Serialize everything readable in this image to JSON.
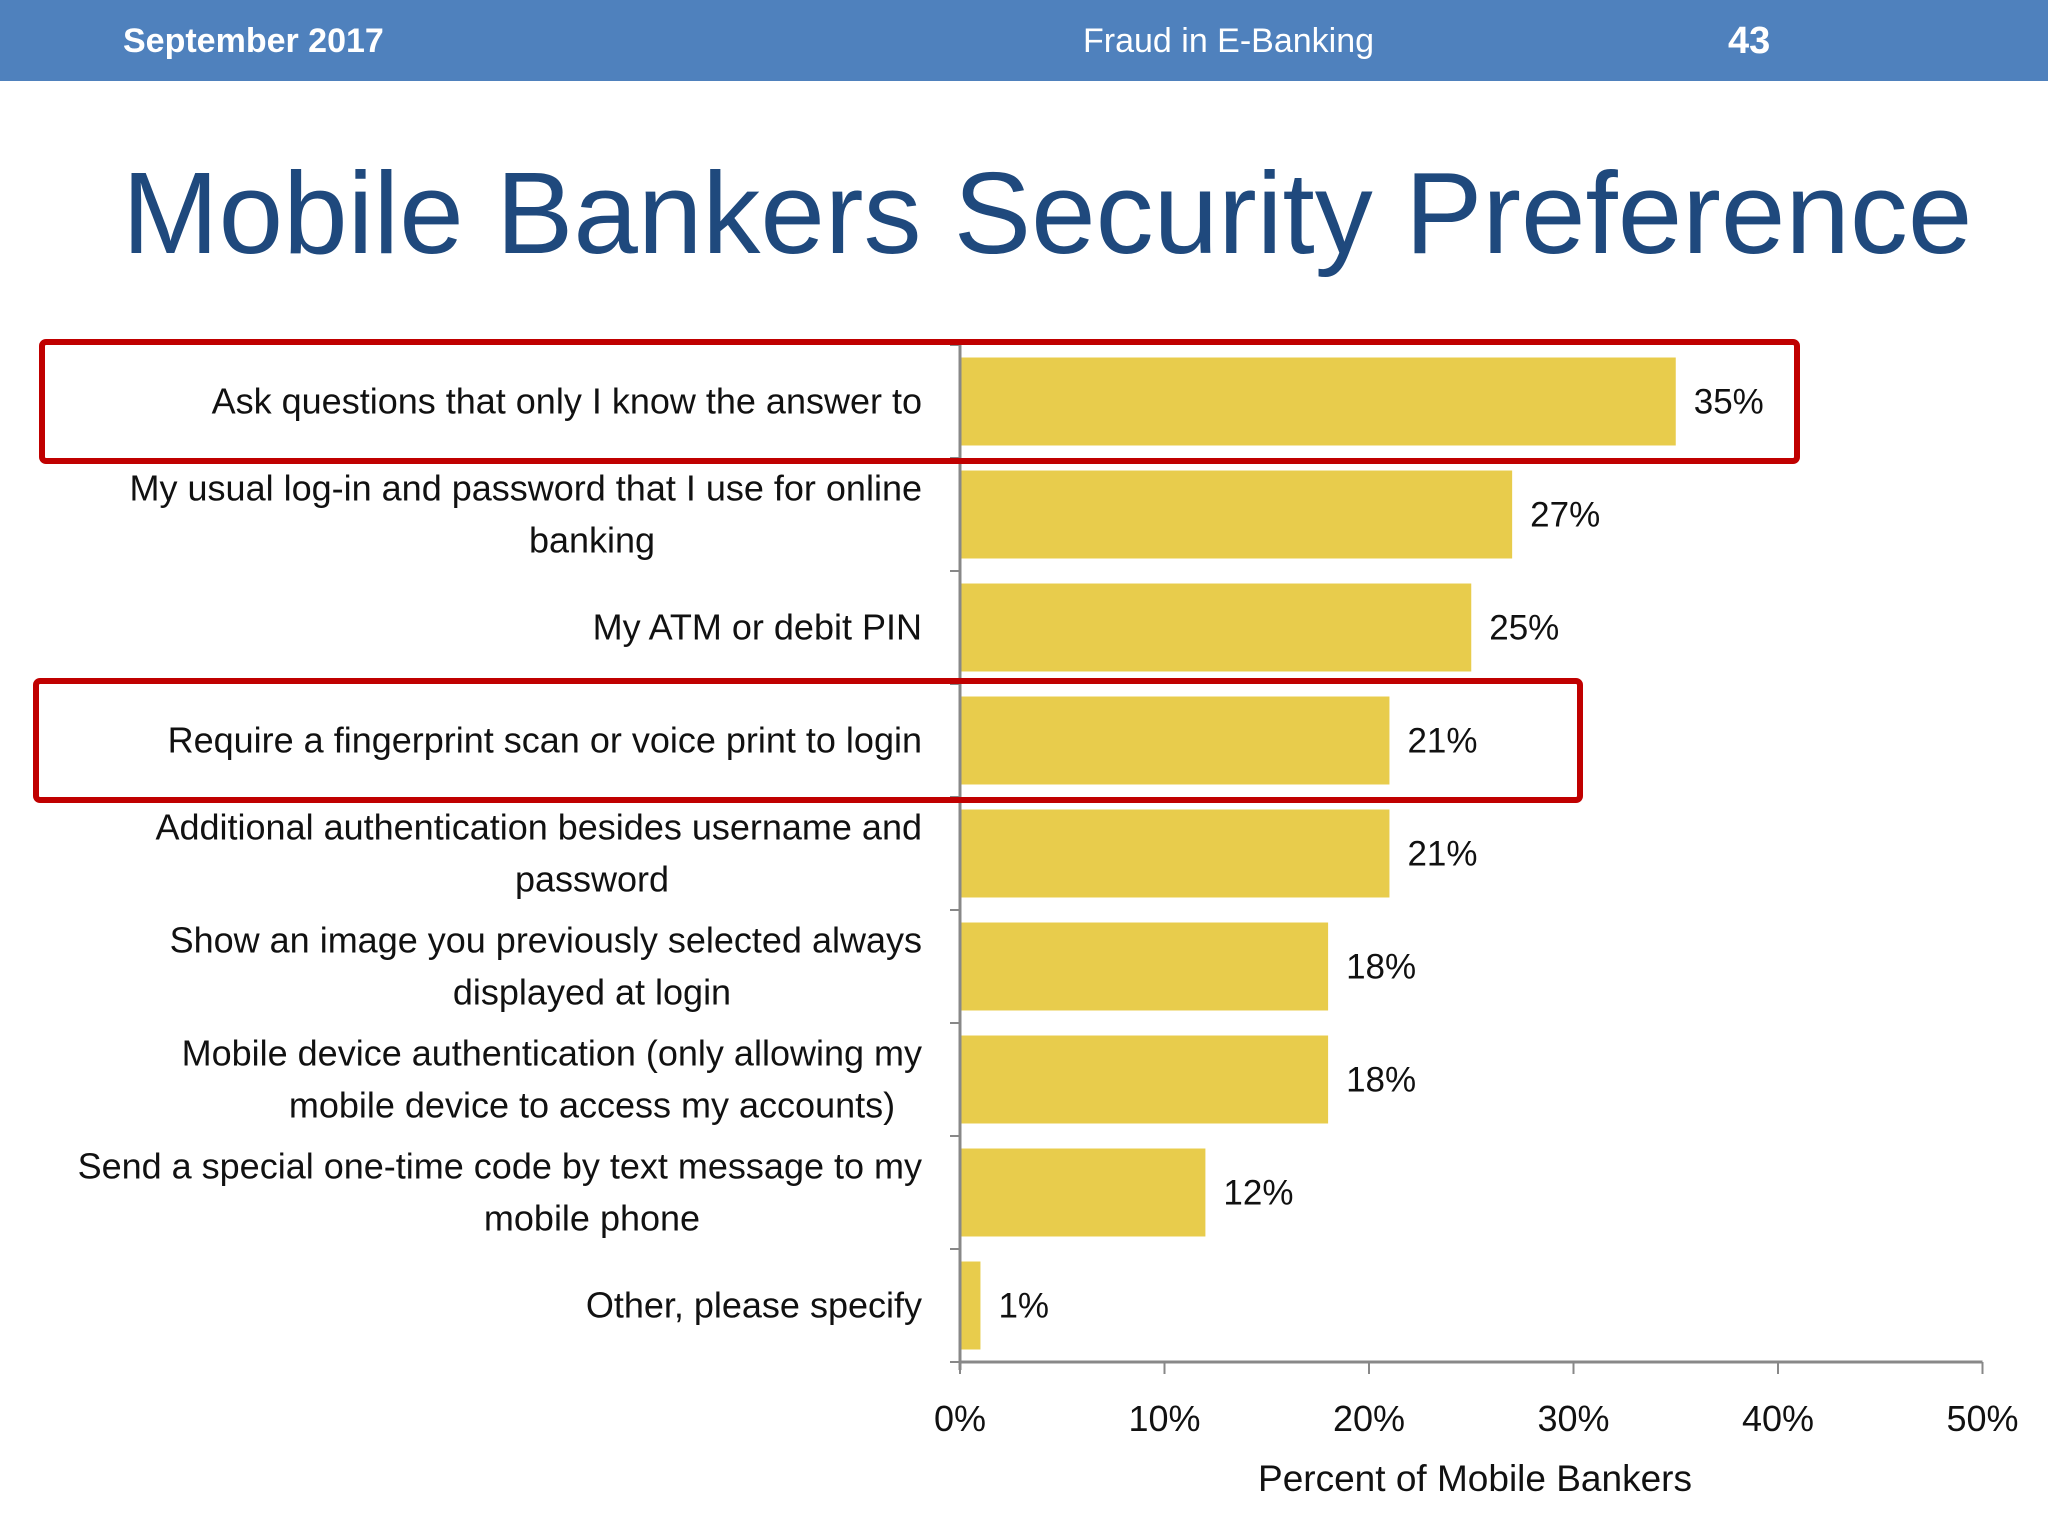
{
  "header": {
    "date": "September 2017",
    "deck_title": "Fraud in E-Banking",
    "page_number": "43"
  },
  "slide": {
    "title": "Mobile Bankers Security Preference"
  },
  "colors": {
    "header_bg": "#4f81bd",
    "title": "#1f497d",
    "bar": "#e8cc4c",
    "highlight_box": "#c00000"
  },
  "chart_data": {
    "type": "bar",
    "orientation": "horizontal",
    "categories": [
      [
        "Ask questions that only I know the answer to"
      ],
      [
        "My usual log-in and password that I use for online",
        "banking"
      ],
      [
        "My ATM or debit PIN"
      ],
      [
        "Require a fingerprint scan or voice print to login"
      ],
      [
        "Additional authentication besides username and",
        "password"
      ],
      [
        "Show an image you previously selected always",
        "displayed at login"
      ],
      [
        "Mobile device authentication (only allowing my",
        "mobile device to access my accounts)"
      ],
      [
        "Send a special one-time code by text message to my",
        "mobile phone"
      ],
      [
        "Other, please specify"
      ]
    ],
    "values": [
      35,
      27,
      25,
      21,
      21,
      18,
      18,
      12,
      1
    ],
    "data_labels": [
      "35%",
      "27%",
      "25%",
      "21%",
      "21%",
      "18%",
      "18%",
      "12%",
      "1%"
    ],
    "xlim": [
      0,
      50
    ],
    "xticks": [
      0,
      10,
      20,
      30,
      40,
      50
    ],
    "xtick_labels": [
      "0%",
      "10%",
      "20%",
      "30%",
      "40%",
      "50%"
    ],
    "xlabel": "Percent of Mobile Bankers",
    "ylabel": "",
    "grid": false,
    "legend": "none",
    "highlighted_categories": [
      0,
      3
    ]
  }
}
